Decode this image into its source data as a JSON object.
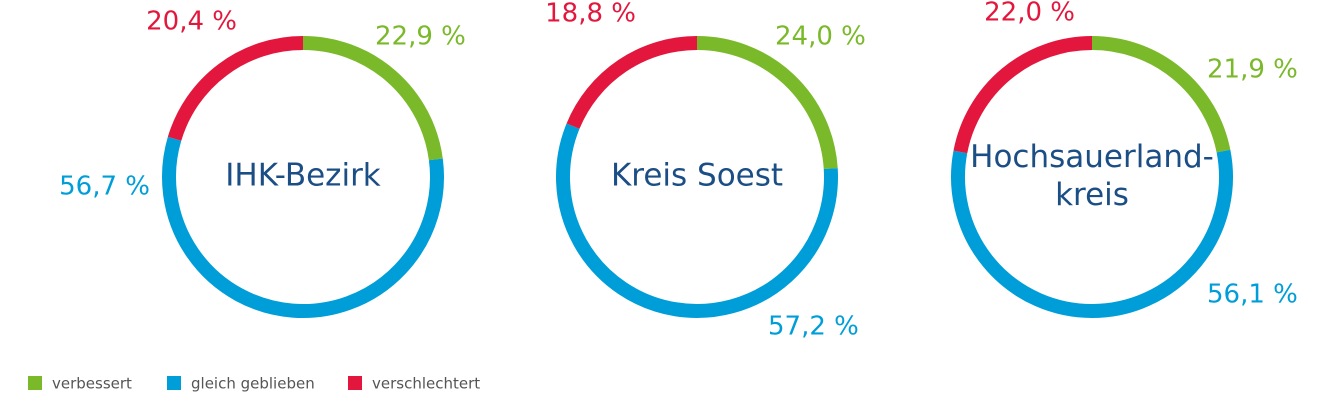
{
  "chart_data": {
    "type": "donut",
    "categories": [
      "verbessert",
      "gleich geblieben",
      "verschlechtert"
    ],
    "colors": [
      "#7ab929",
      "#009ed8",
      "#e3173d"
    ],
    "series": [
      {
        "name": "IHK-Bezirk",
        "values": [
          22.9,
          56.7,
          20.4
        ],
        "value_labels": [
          "22,9 %",
          "56,7 %",
          "20,4 %"
        ]
      },
      {
        "name": "Kreis Soest",
        "values": [
          24.0,
          57.2,
          18.8
        ],
        "value_labels": [
          "24,0 %",
          "57,2 %",
          "18,8 %"
        ]
      },
      {
        "name": "Hochsauerland-\nkreis",
        "values": [
          21.9,
          56.1,
          22.0
        ],
        "value_labels": [
          "21,9 %",
          "56,1 %",
          "22,0 %"
        ]
      }
    ]
  }
}
